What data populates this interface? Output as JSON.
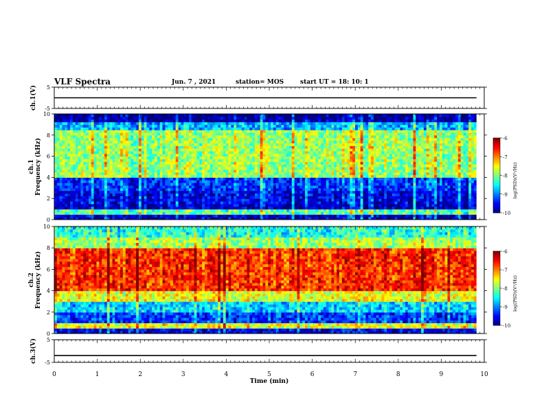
{
  "header": {
    "title": "VLF Spectra",
    "date": "Jun. 7 , 2021",
    "station": "station= MOS",
    "start": "start UT =  18: 10: 1"
  },
  "chart_data": [
    {
      "type": "line",
      "panel": "ch1-voltage",
      "ylabel": "ch.1(V)",
      "ylim": [
        -5,
        5
      ],
      "yticks": [
        5,
        -5
      ],
      "x": [
        0,
        10
      ],
      "y": [
        0,
        0
      ]
    },
    {
      "type": "heatmap",
      "panel": "ch1-spectrogram",
      "ylabel": "ch.1\nFrequency (kHz)",
      "ylim": [
        0,
        10
      ],
      "yticks": [
        0,
        2,
        4,
        6,
        8,
        10
      ],
      "xlim": [
        0,
        10
      ],
      "colorbar": {
        "label": "log(PSD)(V²/Hz)",
        "ticks": [
          -6,
          -7,
          -8,
          -9,
          -10
        ],
        "range": [
          -10,
          -6
        ]
      },
      "bands": [
        {
          "fmin": 0.0,
          "fmax": 0.4,
          "level": -9.7
        },
        {
          "fmin": 0.4,
          "fmax": 0.9,
          "level": -8.2
        },
        {
          "fmin": 0.9,
          "fmax": 1.5,
          "level": -9.8
        },
        {
          "fmin": 1.5,
          "fmax": 2.8,
          "level": -9.6
        },
        {
          "fmin": 2.8,
          "fmax": 4.0,
          "level": -9.3
        },
        {
          "fmin": 4.0,
          "fmax": 8.6,
          "level": -7.9
        },
        {
          "fmin": 8.6,
          "fmax": 9.2,
          "level": -8.8
        },
        {
          "fmin": 9.2,
          "fmax": 10.0,
          "level": -9.9
        }
      ]
    },
    {
      "type": "heatmap",
      "panel": "ch2-spectrogram",
      "ylabel": "ch.2\nFrequency (kHz)",
      "ylim": [
        0,
        10
      ],
      "yticks": [
        0,
        2,
        4,
        6,
        8,
        10
      ],
      "xlim": [
        0,
        10
      ],
      "colorbar": {
        "label": "log(PSD)(V²/Hz)",
        "ticks": [
          -6,
          -7,
          -8,
          -9,
          -10
        ],
        "range": [
          -10,
          -6
        ]
      },
      "bands": [
        {
          "fmin": 0.0,
          "fmax": 0.4,
          "level": -9.6
        },
        {
          "fmin": 0.4,
          "fmax": 0.9,
          "level": -7.6
        },
        {
          "fmin": 0.9,
          "fmax": 2.0,
          "level": -9.3
        },
        {
          "fmin": 2.0,
          "fmax": 3.0,
          "level": -8.7
        },
        {
          "fmin": 3.0,
          "fmax": 4.0,
          "level": -7.6
        },
        {
          "fmin": 4.0,
          "fmax": 8.0,
          "level": -6.7
        },
        {
          "fmin": 8.0,
          "fmax": 9.0,
          "level": -7.9
        },
        {
          "fmin": 9.0,
          "fmax": 10.0,
          "level": -8.4
        }
      ]
    },
    {
      "type": "line",
      "panel": "ch3-voltage",
      "ylabel": "ch.3(V)",
      "ylim": [
        -5,
        5
      ],
      "yticks": [
        5,
        -5
      ],
      "x": [
        0,
        10
      ],
      "y": [
        -2,
        -2
      ]
    }
  ],
  "xaxis": {
    "label": "Time (min)",
    "ticks": [
      "0",
      "1",
      "2",
      "3",
      "4",
      "5",
      "6",
      "7",
      "8",
      "9",
      "10"
    ]
  }
}
